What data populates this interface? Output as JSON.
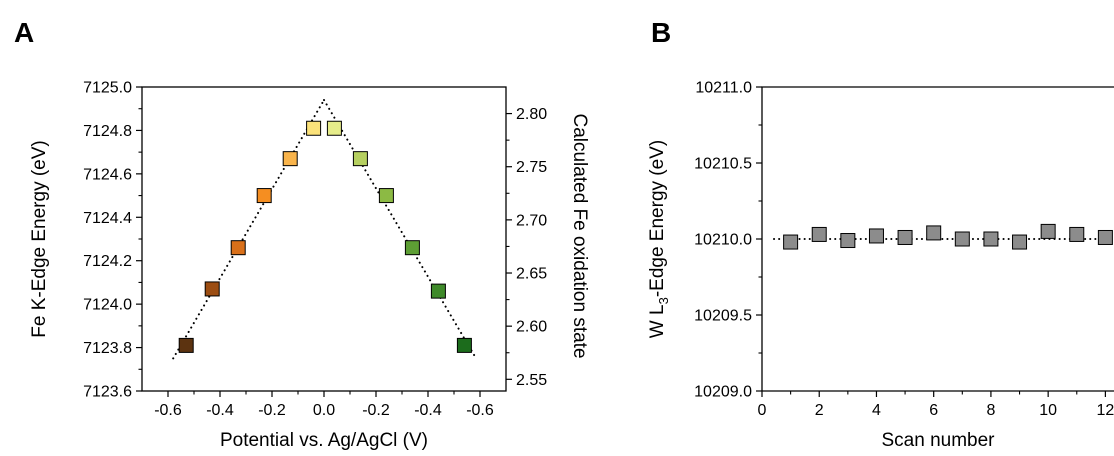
{
  "chart_data": [
    {
      "panel": "A",
      "type": "scatter",
      "xlabel": "Potential vs. Ag/AgCl (V)",
      "ylabel": "Fe K-Edge Energy (eV)",
      "y2label": "Calculated Fe oxidation state",
      "x_ticks": [
        "-0.6",
        "-0.4",
        "-0.2",
        "0.0",
        "-0.2",
        "-0.4",
        "-0.6"
      ],
      "x_tick_values": [
        -0.6,
        -0.4,
        -0.2,
        0.0,
        0.2,
        0.4,
        0.6
      ],
      "xlim": [
        -0.7,
        0.7
      ],
      "ylim": [
        7123.6,
        7125.0
      ],
      "y_ticks": [
        "7123.6",
        "7123.8",
        "7124.0",
        "7124.2",
        "7124.4",
        "7124.6",
        "7124.8",
        "7125.0"
      ],
      "y_tick_values": [
        7123.6,
        7123.8,
        7124.0,
        7124.2,
        7124.4,
        7124.6,
        7124.8,
        7125.0
      ],
      "y2_ticks": [
        "2.55",
        "2.60",
        "2.65",
        "2.70",
        "2.75",
        "2.80"
      ],
      "y2_tick_values": [
        2.55,
        2.6,
        2.65,
        2.7,
        2.75,
        2.8
      ],
      "y2lim": [
        2.539,
        2.825
      ],
      "points": [
        {
          "x": -0.53,
          "y": 7123.81,
          "color": "#5c3310"
        },
        {
          "x": -0.43,
          "y": 7124.07,
          "color": "#9c4d12"
        },
        {
          "x": -0.33,
          "y": 7124.26,
          "color": "#d9701a"
        },
        {
          "x": -0.23,
          "y": 7124.5,
          "color": "#f58e21"
        },
        {
          "x": -0.13,
          "y": 7124.67,
          "color": "#f9b44b"
        },
        {
          "x": -0.04,
          "y": 7124.81,
          "color": "#fbe27a"
        },
        {
          "x": 0.04,
          "y": 7124.81,
          "color": "#e6ec8a"
        },
        {
          "x": 0.14,
          "y": 7124.67,
          "color": "#b6d060"
        },
        {
          "x": 0.24,
          "y": 7124.5,
          "color": "#8cba44"
        },
        {
          "x": 0.34,
          "y": 7124.26,
          "color": "#5d9e34"
        },
        {
          "x": 0.44,
          "y": 7124.06,
          "color": "#3f8a2a"
        },
        {
          "x": 0.54,
          "y": 7123.81,
          "color": "#1c6c1c"
        }
      ],
      "fit_lines": [
        {
          "from": [
            -0.58,
            7123.75
          ],
          "to": [
            0.0,
            7124.94
          ]
        },
        {
          "from": [
            0.0,
            7124.94
          ],
          "to": [
            0.58,
            7123.76
          ]
        }
      ]
    },
    {
      "panel": "B",
      "type": "scatter",
      "xlabel": "Scan number",
      "ylabel_prefix": "W L",
      "ylabel_sub": "3",
      "ylabel_suffix": "-Edge Energy (eV)",
      "xlim": [
        0,
        13
      ],
      "x_ticks": [
        "0",
        "2",
        "4",
        "6",
        "8",
        "10",
        "12"
      ],
      "x_tick_values": [
        0,
        2,
        4,
        6,
        8,
        10,
        12
      ],
      "ylim": [
        10209.0,
        10211.0
      ],
      "y_ticks": [
        "10209.0",
        "10209.5",
        "10210.0",
        "10210.5",
        "10211.0"
      ],
      "y_tick_values": [
        10209.0,
        10209.5,
        10210.0,
        10210.5,
        10211.0
      ],
      "reference_y": 10210.0,
      "marker_color": "#8c8c8c",
      "x": [
        1,
        2,
        3,
        4,
        5,
        6,
        7,
        8,
        9,
        10,
        11,
        12
      ],
      "y": [
        10209.98,
        10210.03,
        10209.99,
        10210.02,
        10210.01,
        10210.04,
        10210.0,
        10210.0,
        10209.98,
        10210.05,
        10210.03,
        10210.01
      ]
    }
  ]
}
